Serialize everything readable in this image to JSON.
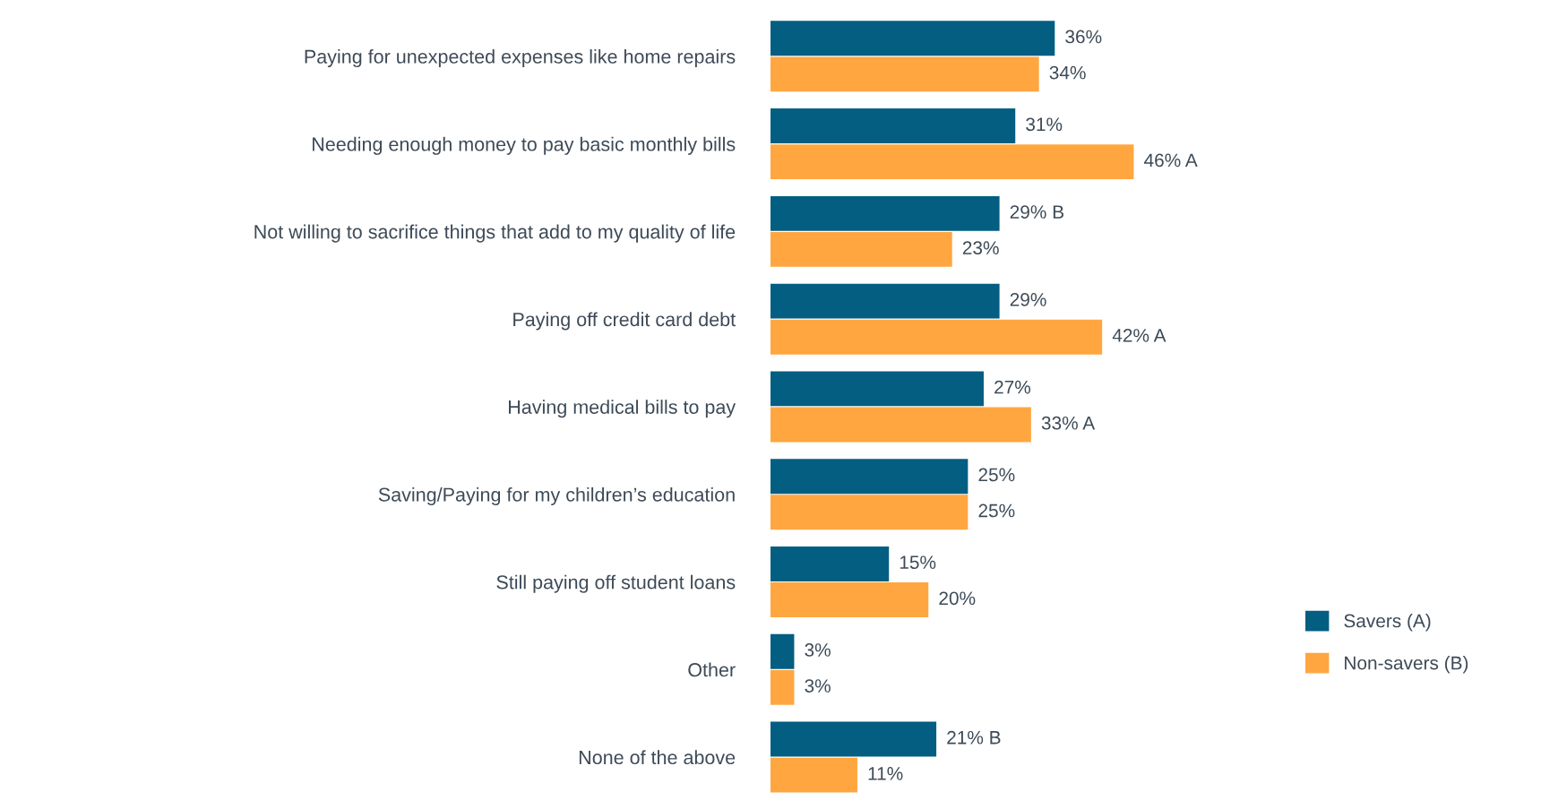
{
  "chart_data": {
    "type": "bar",
    "orientation": "horizontal",
    "legend": "right",
    "grid": false,
    "categories": [
      "Paying for unexpected expenses like home repairs",
      "Needing enough money to pay basic monthly bills",
      "Not willing to sacrifice things that add to my quality of life",
      "Paying off credit card debt",
      "Having medical bills to pay",
      "Saving/Paying for my children’s education",
      "Still paying off student loans",
      "Other",
      "None of the above"
    ],
    "series": [
      {
        "name": "Savers (A)",
        "color": "#045e82",
        "values": [
          36,
          31,
          29,
          29,
          27,
          25,
          15,
          3,
          21
        ],
        "value_labels": [
          "36%",
          "31%",
          "29% B",
          "29%",
          "27%",
          "25%",
          "15%",
          "3%",
          "21% B"
        ]
      },
      {
        "name": "Non-savers (B)",
        "color": "#ffa640",
        "values": [
          34,
          46,
          23,
          42,
          33,
          25,
          20,
          3,
          11
        ],
        "value_labels": [
          "34%",
          "46% A",
          "23%",
          "42% A",
          "33% A",
          "25%",
          "20%",
          "3%",
          "11%"
        ]
      }
    ]
  }
}
